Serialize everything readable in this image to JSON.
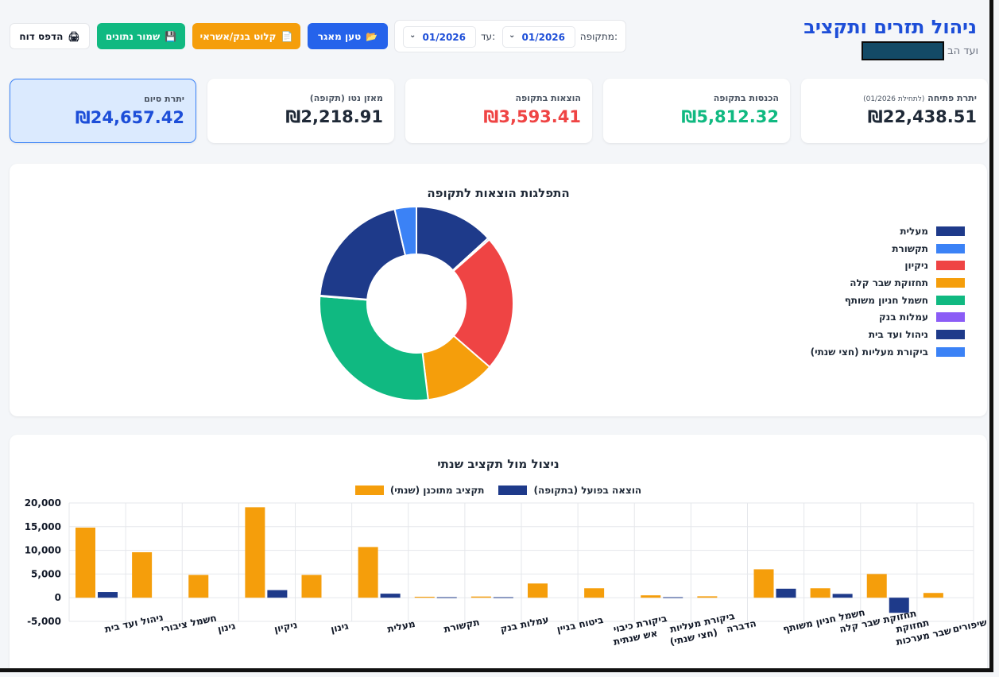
{
  "header": {
    "title": "ניהול תזרים ותקציב",
    "subtitle_prefix": "ועד הב"
  },
  "period": {
    "label": "מתקופה:",
    "from_value": "01/2026",
    "to_label": "עד:",
    "to_value": "01/2026"
  },
  "toolbar": {
    "load_label": "טען מאגר",
    "import_label": "קלוט בנק/אשראי",
    "save_label": "שמור נתונים",
    "print_label": "הדפס דוח"
  },
  "cards": {
    "opening_label": "יתרת פתיחה",
    "opening_note": "(לתחילת 01/2026)",
    "opening_value": "₪22,438.51",
    "income_label": "הכנסות בתקופה",
    "income_value": "₪5,812.32",
    "expense_label": "הוצאות בתקופה",
    "expense_value": "₪3,593.41",
    "net_label": "מאזן נטו (תקופה)",
    "net_value": "₪2,218.91",
    "closing_label": "יתרת סיום",
    "closing_value": "₪24,657.42"
  },
  "colors": {
    "primary": "#2563eb",
    "income": "#10b981",
    "expense": "#ef4444",
    "warning": "#f59e0b",
    "navy": "#1e3a8a"
  },
  "chart_data": [
    {
      "type": "pie",
      "title": "התפלגות הוצאות לתקופה",
      "legend_position": "right",
      "labels": [
        "מעלית",
        "תקשורת",
        "ניקיון",
        "תחזוקת שבר קלה",
        "חשמל חניון משותף",
        "עמלות בנק",
        "ניהול ועד בית",
        "ביקורת מעליות (חצי שנתי)"
      ],
      "values": [
        475,
        11,
        820,
        420,
        1010,
        5,
        720,
        130
      ],
      "colors": [
        "#1e3a8a",
        "#3b82f6",
        "#ef4444",
        "#f59e0b",
        "#10b981",
        "#8b5cf6",
        "#1e3a8a",
        "#3b82f6"
      ],
      "slice_order": [
        0,
        1,
        2,
        3,
        4,
        5,
        6,
        7
      ]
    },
    {
      "type": "bar",
      "title": "ניצול מול תקציב שנתי",
      "legend_position": "top",
      "categories": [
        "ניהול ועד בית",
        "חשמל ציבורי",
        "גינון",
        "ניקיון",
        "גינון",
        "מעלית",
        "תקשורת",
        "עמלות בנק",
        "ביטוח בניין",
        "ביקורת כיבוי אש שנתית",
        "ביקורת מעליות (חצי שנתי)",
        "הדברה",
        "חשמל חניון משותף",
        "תחזוקת שבר קלה",
        "תחזוקת שבר מערכות",
        "השקעה ושיפורים"
      ],
      "series": [
        {
          "name": "תקציב מתוכנן (שנתי)",
          "color": "#f59e0b",
          "values": [
            14800,
            9600,
            4800,
            19100,
            4800,
            10700,
            200,
            250,
            3000,
            2000,
            500,
            300,
            6000,
            2000,
            5000,
            1000
          ]
        },
        {
          "name": "הוצאה בפועל (בתקופה)",
          "color": "#1e3a8a",
          "values": [
            1200,
            0,
            0,
            1600,
            0,
            850,
            100,
            100,
            0,
            0,
            100,
            0,
            1900,
            800,
            -3200,
            0
          ]
        }
      ],
      "ylim": [
        -5000,
        20000
      ],
      "yticks": [
        "20,000",
        "15,000",
        "10,000",
        "5,000",
        "0",
        "-5,000"
      ],
      "grid": true
    }
  ]
}
